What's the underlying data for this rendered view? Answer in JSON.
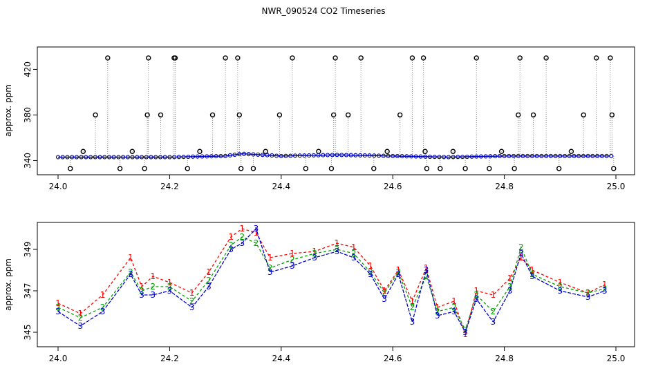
{
  "title": "NWR_090524  CO2 Timeseries",
  "colors": {
    "series1": "#ff0000",
    "series2": "#00a000",
    "series3": "#0000cc",
    "flagged": "#000000",
    "cyan": "#00bcd4",
    "axis": "#000000"
  },
  "chart_data": [
    {
      "type": "scatter",
      "ylabel": "approx. ppm",
      "xlim": [
        24.0,
        25.0
      ],
      "ylim": [
        333,
        436
      ],
      "xticks": [
        "24.0",
        "24.2",
        "24.4",
        "24.6",
        "24.8",
        "25.0"
      ],
      "yticks": [
        "340",
        "380",
        "420"
      ],
      "baseline_series": [
        {
          "name": "1",
          "x": [
            24.0,
            24.1,
            24.2,
            24.3,
            24.33,
            24.4,
            24.5,
            24.6,
            24.7,
            24.8,
            24.9,
            24.99
          ],
          "y": [
            343,
            343,
            343,
            344,
            346,
            344,
            345,
            344,
            343,
            344,
            344,
            344
          ]
        },
        {
          "name": "2",
          "x": [
            24.0,
            24.1,
            24.2,
            24.3,
            24.33,
            24.4,
            24.5,
            24.6,
            24.7,
            24.8,
            24.9,
            24.99
          ],
          "y": [
            343,
            343,
            343,
            344,
            346,
            344,
            345,
            344,
            343,
            344,
            344,
            344
          ]
        },
        {
          "name": "3",
          "x": [
            24.0,
            24.1,
            24.2,
            24.3,
            24.33,
            24.4,
            24.5,
            24.6,
            24.7,
            24.8,
            24.9,
            24.99
          ],
          "y": [
            343,
            343,
            343,
            344,
            346,
            344,
            345,
            344,
            343,
            344,
            344,
            344
          ]
        }
      ],
      "flagged_points": {
        "x": [
          24.022,
          24.045,
          24.067,
          24.089,
          24.111,
          24.133,
          24.155,
          24.16,
          24.162,
          24.184,
          24.208,
          24.21,
          24.232,
          24.254,
          24.277,
          24.3,
          24.322,
          24.325,
          24.328,
          24.35,
          24.372,
          24.397,
          24.42,
          24.444,
          24.467,
          24.49,
          24.494,
          24.497,
          24.52,
          24.543,
          24.566,
          24.59,
          24.613,
          24.635,
          24.655,
          24.658,
          24.661,
          24.685,
          24.708,
          24.73,
          24.75,
          24.773,
          24.795,
          24.818,
          24.825,
          24.828,
          24.852,
          24.875,
          24.898,
          24.92,
          24.942,
          24.965,
          24.99,
          24.993,
          24.996
        ],
        "y": [
          333,
          348,
          380,
          430,
          333,
          348,
          333,
          380,
          430,
          380,
          430,
          430,
          333,
          348,
          380,
          430,
          430,
          380,
          333,
          333,
          348,
          380,
          430,
          333,
          348,
          333,
          380,
          430,
          380,
          430,
          333,
          348,
          380,
          430,
          430,
          348,
          333,
          333,
          348,
          333,
          430,
          333,
          348,
          333,
          380,
          430,
          380,
          430,
          333,
          348,
          380,
          430,
          430,
          380,
          333
        ]
      }
    },
    {
      "type": "line",
      "ylabel": "approx. ppm",
      "xlim": [
        24.0,
        25.0
      ],
      "ylim": [
        344.3,
        350.3
      ],
      "xticks": [
        "24.0",
        "24.2",
        "24.4",
        "24.6",
        "24.8",
        "25.0"
      ],
      "yticks": [
        "345",
        "347",
        "349"
      ],
      "series": [
        {
          "name": "1",
          "x": [
            24.0,
            24.04,
            24.08,
            24.13,
            24.15,
            24.17,
            24.2,
            24.24,
            24.27,
            24.31,
            24.33,
            24.355,
            24.38,
            24.42,
            24.46,
            24.5,
            24.53,
            24.56,
            24.585,
            24.61,
            24.635,
            24.66,
            24.68,
            24.71,
            24.73,
            24.75,
            24.78,
            24.81,
            24.83,
            24.85,
            24.9,
            24.95,
            24.98
          ],
          "y": [
            346.4,
            345.9,
            346.8,
            348.6,
            347.2,
            347.7,
            347.4,
            346.9,
            347.9,
            349.6,
            350.0,
            349.8,
            348.6,
            348.8,
            348.9,
            349.3,
            349.1,
            348.2,
            347.0,
            348.0,
            346.5,
            348.1,
            346.2,
            346.5,
            344.9,
            347.0,
            346.8,
            347.6,
            348.6,
            348.0,
            347.4,
            346.9,
            347.3
          ]
        },
        {
          "name": "2",
          "x": [
            24.0,
            24.04,
            24.08,
            24.13,
            24.15,
            24.17,
            24.2,
            24.24,
            24.27,
            24.31,
            24.33,
            24.355,
            24.38,
            24.42,
            24.46,
            24.5,
            24.53,
            24.56,
            24.585,
            24.61,
            24.635,
            24.66,
            24.68,
            24.71,
            24.73,
            24.75,
            24.78,
            24.81,
            24.83,
            24.85,
            24.9,
            24.95,
            24.98
          ],
          "y": [
            346.2,
            345.7,
            346.2,
            347.9,
            347.0,
            347.2,
            347.2,
            346.5,
            347.5,
            349.2,
            349.6,
            349.3,
            348.1,
            348.5,
            348.8,
            349.0,
            348.8,
            347.9,
            346.9,
            347.9,
            346.2,
            347.7,
            346.0,
            346.2,
            345.1,
            346.8,
            346.0,
            347.2,
            349.1,
            347.8,
            347.2,
            346.9,
            347.1
          ]
        },
        {
          "name": "3",
          "x": [
            24.0,
            24.04,
            24.08,
            24.13,
            24.15,
            24.17,
            24.2,
            24.24,
            24.27,
            24.31,
            24.33,
            24.355,
            24.38,
            24.42,
            24.46,
            24.5,
            24.53,
            24.56,
            24.585,
            24.61,
            24.635,
            24.66,
            24.68,
            24.71,
            24.73,
            24.75,
            24.78,
            24.81,
            24.83,
            24.85,
            24.9,
            24.95,
            24.98
          ],
          "y": [
            346.0,
            345.3,
            346.0,
            347.8,
            346.8,
            346.8,
            347.0,
            346.2,
            347.2,
            349.0,
            349.3,
            350.0,
            347.9,
            348.2,
            348.6,
            348.9,
            348.6,
            347.8,
            346.6,
            347.8,
            345.5,
            348.0,
            345.8,
            346.0,
            345.0,
            346.6,
            345.5,
            347.0,
            348.8,
            347.7,
            347.0,
            346.7,
            347.0
          ]
        }
      ]
    }
  ]
}
